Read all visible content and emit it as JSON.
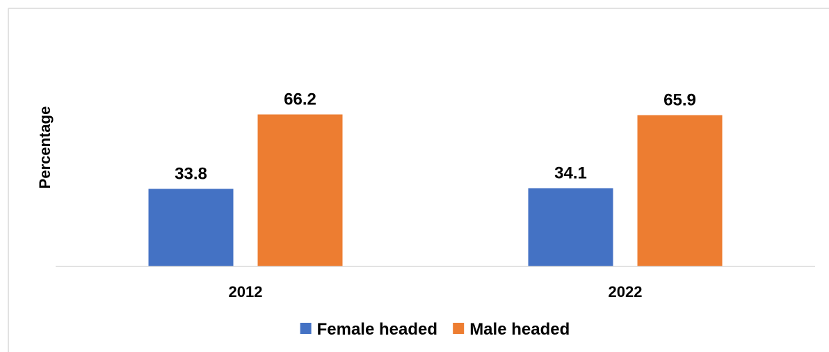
{
  "chart_data": {
    "type": "bar",
    "categories": [
      "2012",
      "2022"
    ],
    "series": [
      {
        "name": "Female headed",
        "values": [
          33.8,
          34.1
        ],
        "color": "#4472C4"
      },
      {
        "name": "Male headed",
        "values": [
          66.2,
          65.9
        ],
        "color": "#ED7D31"
      }
    ],
    "title": "",
    "xlabel": "",
    "ylabel": "Percentage",
    "ylim": [
      0,
      80
    ],
    "grid": false,
    "legend_position": "bottom",
    "data_labels": [
      "33.8",
      "66.2",
      "34.1",
      "65.9"
    ]
  }
}
